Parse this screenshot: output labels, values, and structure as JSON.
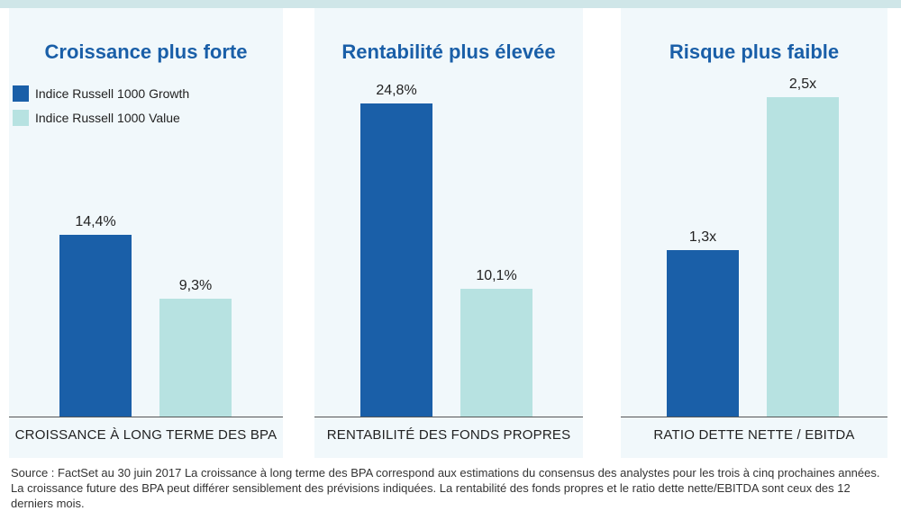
{
  "colors": {
    "growth": "#1a5fa8",
    "value": "#b7e2e1",
    "title": "#1a5fa8",
    "panel_bg": "#f1f8fb",
    "top_rule": "#cfe6e8"
  },
  "legend": [
    {
      "label": "Indice Russell 1000 Growth",
      "color": "#1a5fa8"
    },
    {
      "label": "Indice Russell 1000 Value",
      "color": "#b7e2e1"
    }
  ],
  "chart_data": [
    {
      "type": "bar",
      "title": "Croissance plus forte",
      "xlabel": "CROISSANCE À LONG TERME DES BPA",
      "unit": "%",
      "series": [
        {
          "name": "Indice Russell 1000 Growth",
          "value": 14.4,
          "label": "14,4%"
        },
        {
          "name": "Indice Russell 1000 Value",
          "value": 9.3,
          "label": "9,3%"
        }
      ],
      "ylim": [
        0,
        25.5
      ]
    },
    {
      "type": "bar",
      "title": "Rentabilité plus élevée",
      "xlabel": "RENTABILITÉ DES FONDS PROPRES",
      "unit": "%",
      "series": [
        {
          "name": "Indice Russell 1000 Growth",
          "value": 24.8,
          "label": "24,8%"
        },
        {
          "name": "Indice Russell 1000 Value",
          "value": 10.1,
          "label": "10,1%"
        }
      ],
      "ylim": [
        0,
        25.5
      ]
    },
    {
      "type": "bar",
      "title": "Risque plus faible",
      "xlabel": "RATIO DETTE NETTE / EBITDA",
      "unit": "x",
      "series": [
        {
          "name": "Indice Russell 1000 Growth",
          "value": 1.3,
          "label": "1,3x"
        },
        {
          "name": "Indice Russell 1000 Value",
          "value": 2.5,
          "label": "2,5x"
        }
      ],
      "ylim": [
        0,
        2.52
      ]
    }
  ],
  "footnote": "Source : FactSet au 30 juin 2017 La croissance à long terme des BPA correspond aux estimations du consensus des analystes pour les trois à cinq prochaines années. La croissance future des BPA peut différer sensiblement des prévisions indiquées. La rentabilité des fonds propres et le ratio dette nette/EBITDA sont ceux des 12 derniers mois."
}
